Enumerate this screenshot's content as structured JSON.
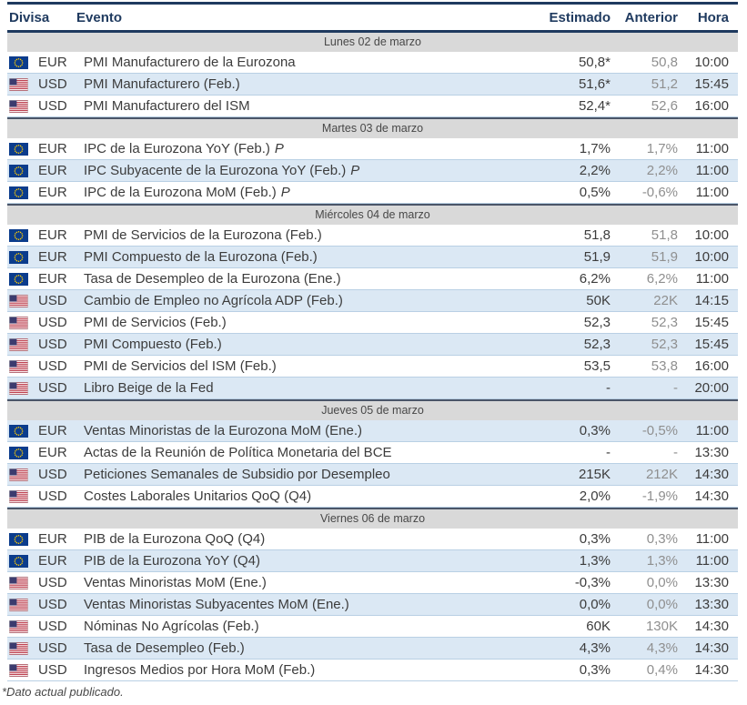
{
  "header": {
    "columns": [
      "Divisa",
      "Evento",
      "Estimado",
      "Anterior",
      "Hora"
    ]
  },
  "colors": {
    "navy_accent": "#1f3a5f",
    "day_bar_bg": "#d9d9d9",
    "shaded_row_bg": "#dbe8f4",
    "anterior_text": "#8f8f8f",
    "eu_flag_blue": "#0b3c8c",
    "eu_flag_stars": "#ffcc00",
    "us_flag_red": "#b22234",
    "us_flag_canton": "#3c3b6e"
  },
  "sections": [
    {
      "day": "Lunes 02 de marzo",
      "rows": [
        {
          "flag": "eu",
          "currency": "EUR",
          "event": "PMI Manufacturero de la Eurozona",
          "event_suffix": "",
          "estimado": "50,8*",
          "anterior": "50,8",
          "hora": "10:00",
          "shaded": false
        },
        {
          "flag": "us",
          "currency": "USD",
          "event": "PMI Manufacturero (Feb.)",
          "event_suffix": "",
          "estimado": "51,6*",
          "anterior": "51,2",
          "hora": "15:45",
          "shaded": true
        },
        {
          "flag": "us",
          "currency": "USD",
          "event": "PMI Manufacturero del ISM",
          "event_suffix": "",
          "estimado": "52,4*",
          "anterior": "52,6",
          "hora": "16:00",
          "shaded": false
        }
      ]
    },
    {
      "day": "Martes 03 de marzo",
      "rows": [
        {
          "flag": "eu",
          "currency": "EUR",
          "event": "IPC de la Eurozona YoY (Feb.)",
          "event_suffix": "P",
          "estimado": "1,7%",
          "anterior": "1,7%",
          "hora": "11:00",
          "shaded": false
        },
        {
          "flag": "eu",
          "currency": "EUR",
          "event": "IPC Subyacente de la Eurozona YoY (Feb.)",
          "event_suffix": "P",
          "estimado": "2,2%",
          "anterior": "2,2%",
          "hora": "11:00",
          "shaded": true
        },
        {
          "flag": "eu",
          "currency": "EUR",
          "event": "IPC de la Eurozona MoM (Feb.)",
          "event_suffix": "P",
          "estimado": "0,5%",
          "anterior": "-0,6%",
          "hora": "11:00",
          "shaded": false
        }
      ]
    },
    {
      "day": "Miércoles 04 de marzo",
      "rows": [
        {
          "flag": "eu",
          "currency": "EUR",
          "event": "PMI de Servicios de la Eurozona (Feb.)",
          "event_suffix": "",
          "estimado": "51,8",
          "anterior": "51,8",
          "hora": "10:00",
          "shaded": false
        },
        {
          "flag": "eu",
          "currency": "EUR",
          "event": "PMI Compuesto de la Eurozona (Feb.)",
          "event_suffix": "",
          "estimado": "51,9",
          "anterior": "51,9",
          "hora": "10:00",
          "shaded": true
        },
        {
          "flag": "eu",
          "currency": "EUR",
          "event": "Tasa de Desempleo de la Eurozona (Ene.)",
          "event_suffix": "",
          "estimado": "6,2%",
          "anterior": "6,2%",
          "hora": "11:00",
          "shaded": false
        },
        {
          "flag": "us",
          "currency": "USD",
          "event": "Cambio de Empleo no Agrícola ADP (Feb.)",
          "event_suffix": "",
          "estimado": "50K",
          "anterior": "22K",
          "hora": "14:15",
          "shaded": true
        },
        {
          "flag": "us",
          "currency": "USD",
          "event": "PMI de Servicios (Feb.)",
          "event_suffix": "",
          "estimado": "52,3",
          "anterior": "52,3",
          "hora": "15:45",
          "shaded": false
        },
        {
          "flag": "us",
          "currency": "USD",
          "event": "PMI Compuesto (Feb.)",
          "event_suffix": "",
          "estimado": "52,3",
          "anterior": "52,3",
          "hora": "15:45",
          "shaded": true
        },
        {
          "flag": "us",
          "currency": "USD",
          "event": "PMI de Servicios del ISM (Feb.)",
          "event_suffix": "",
          "estimado": "53,5",
          "anterior": "53,8",
          "hora": "16:00",
          "shaded": false
        },
        {
          "flag": "us",
          "currency": "USD",
          "event": "Libro Beige de la Fed",
          "event_suffix": "",
          "estimado": "-",
          "anterior": "-",
          "hora": "20:00",
          "shaded": true
        }
      ]
    },
    {
      "day": "Jueves 05 de marzo",
      "rows": [
        {
          "flag": "eu",
          "currency": "EUR",
          "event": "Ventas Minoristas de la Eurozona MoM (Ene.)",
          "event_suffix": "",
          "estimado": "0,3%",
          "anterior": "-0,5%",
          "hora": "11:00",
          "shaded": true
        },
        {
          "flag": "eu",
          "currency": "EUR",
          "event": "Actas de la Reunión de Política Monetaria del BCE",
          "event_suffix": "",
          "estimado": "-",
          "anterior": "-",
          "hora": "13:30",
          "shaded": false
        },
        {
          "flag": "us",
          "currency": "USD",
          "event": "Peticiones Semanales de Subsidio por Desempleo",
          "event_suffix": "",
          "estimado": "215K",
          "anterior": "212K",
          "hora": "14:30",
          "shaded": true
        },
        {
          "flag": "us",
          "currency": "USD",
          "event": "Costes Laborales Unitarios QoQ (Q4)",
          "event_suffix": "",
          "estimado": "2,0%",
          "anterior": "-1,9%",
          "hora": "14:30",
          "shaded": false
        }
      ]
    },
    {
      "day": "Viernes 06 de marzo",
      "rows": [
        {
          "flag": "eu",
          "currency": "EUR",
          "event": "PIB de la Eurozona QoQ (Q4)",
          "event_suffix": "",
          "estimado": "0,3%",
          "anterior": "0,3%",
          "hora": "11:00",
          "shaded": false
        },
        {
          "flag": "eu",
          "currency": "EUR",
          "event": "PIB de la Eurozona YoY (Q4)",
          "event_suffix": "",
          "estimado": "1,3%",
          "anterior": "1,3%",
          "hora": "11:00",
          "shaded": true
        },
        {
          "flag": "us",
          "currency": "USD",
          "event": "Ventas Minoristas MoM (Ene.)",
          "event_suffix": "",
          "estimado": "-0,3%",
          "anterior": "0,0%",
          "hora": "13:30",
          "shaded": false
        },
        {
          "flag": "us",
          "currency": "USD",
          "event": "Ventas Minoristas Subyacentes MoM (Ene.)",
          "event_suffix": "",
          "estimado": "0,0%",
          "anterior": "0,0%",
          "hora": "13:30",
          "shaded": true
        },
        {
          "flag": "us",
          "currency": "USD",
          "event": "Nóminas No Agrícolas (Feb.)",
          "event_suffix": "",
          "estimado": "60K",
          "anterior": "130K",
          "hora": "14:30",
          "shaded": false
        },
        {
          "flag": "us",
          "currency": "USD",
          "event": "Tasa de Desempleo (Feb.)",
          "event_suffix": "",
          "estimado": "4,3%",
          "anterior": "4,3%",
          "hora": "14:30",
          "shaded": true
        },
        {
          "flag": "us",
          "currency": "USD",
          "event": "Ingresos Medios por Hora MoM (Feb.)",
          "event_suffix": "",
          "estimado": "0,3%",
          "anterior": "0,4%",
          "hora": "14:30",
          "shaded": false
        }
      ]
    }
  ],
  "footer": {
    "note": "*Dato actual publicado."
  }
}
